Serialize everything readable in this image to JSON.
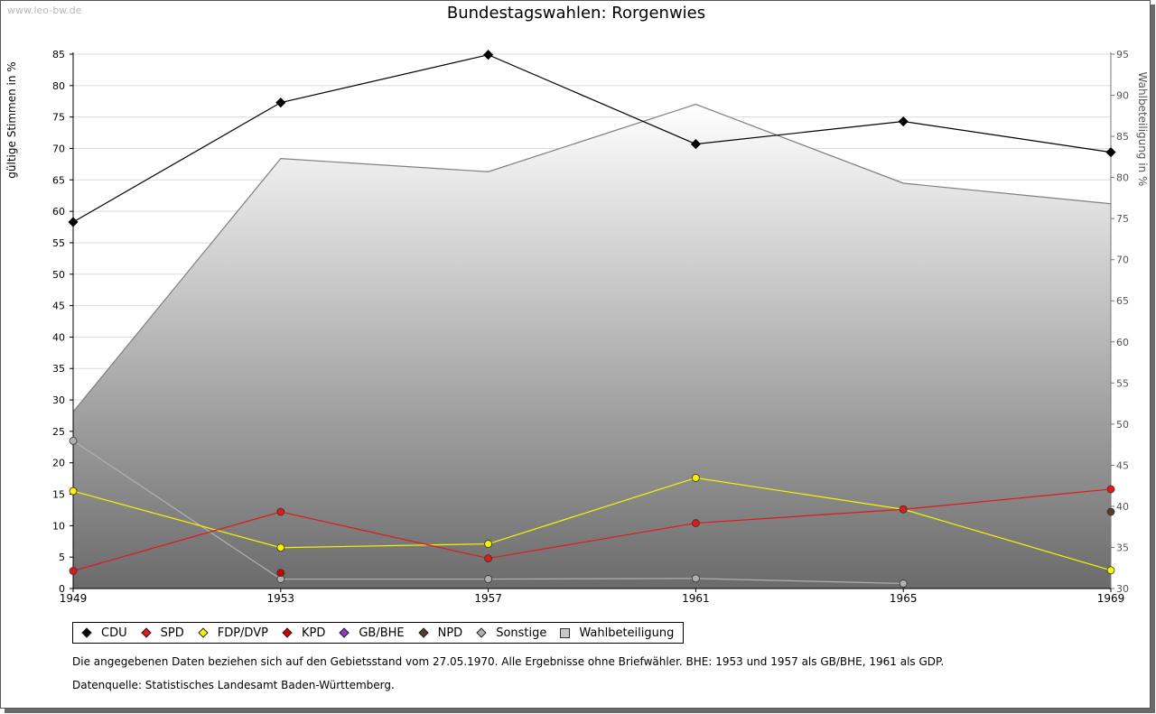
{
  "watermark": "www.leo-bw.de",
  "chart_data": {
    "type": "line",
    "title": "Bundestagswahlen: Rorgenwies",
    "ylabel": "gültige Stimmen in %",
    "y2label": "Wahlbeteiligung in %",
    "x": [
      1949,
      1953,
      1957,
      1961,
      1965,
      1969
    ],
    "ylim": [
      0,
      85
    ],
    "y2lim": [
      30,
      95
    ],
    "yticks": [
      0,
      5,
      10,
      15,
      20,
      25,
      30,
      35,
      40,
      45,
      50,
      55,
      60,
      65,
      70,
      75,
      80,
      85
    ],
    "y2ticks": [
      30,
      35,
      40,
      45,
      50,
      55,
      60,
      65,
      70,
      75,
      80,
      85,
      90,
      95
    ],
    "grid": true,
    "legend_position": "bottom",
    "area": {
      "name": "Wahlbeteiligung",
      "values": [
        51.5,
        82.3,
        80.7,
        88.9,
        79.3,
        76.8
      ],
      "color": "#808080"
    },
    "series": [
      {
        "name": "CDU",
        "color": "#000000",
        "values": [
          58.3,
          77.3,
          84.9,
          70.7,
          74.3,
          69.4
        ]
      },
      {
        "name": "SPD",
        "color": "#e0191a",
        "values": [
          2.8,
          12.2,
          4.8,
          10.4,
          12.6,
          15.8
        ]
      },
      {
        "name": "FDP/DVP",
        "color": "#f5f500",
        "values": [
          15.5,
          6.5,
          7.1,
          17.6,
          12.6,
          2.9
        ]
      },
      {
        "name": "KPD",
        "color": "#cc0000",
        "values": [
          null,
          2.5,
          null,
          null,
          null,
          null
        ]
      },
      {
        "name": "GB/BHE",
        "color": "#9933cc",
        "values": [
          null,
          null,
          null,
          null,
          null,
          null
        ]
      },
      {
        "name": "NPD",
        "color": "#5a3a2a",
        "values": [
          null,
          null,
          null,
          null,
          null,
          12.2
        ]
      },
      {
        "name": "Sonstige",
        "color": "#b0b0b0",
        "values": [
          23.5,
          1.5,
          1.5,
          1.6,
          0.8,
          null
        ]
      }
    ]
  },
  "legend": [
    {
      "label": "CDU",
      "color": "#000000",
      "shape": "diamond"
    },
    {
      "label": "SPD",
      "color": "#e0191a",
      "shape": "diamond"
    },
    {
      "label": "FDP/DVP",
      "color": "#f5f500",
      "shape": "diamond"
    },
    {
      "label": "KPD",
      "color": "#cc0000",
      "shape": "diamond"
    },
    {
      "label": "GB/BHE",
      "color": "#9933cc",
      "shape": "diamond"
    },
    {
      "label": "NPD",
      "color": "#5a3a2a",
      "shape": "diamond"
    },
    {
      "label": "Sonstige",
      "color": "#b0b0b0",
      "shape": "diamond"
    },
    {
      "label": "Wahlbeteiligung",
      "color": "#c8c8c8",
      "shape": "square"
    }
  ],
  "notes": {
    "line1": "Die angegebenen Daten beziehen sich auf den Gebietsstand vom 27.05.1970. Alle Ergebnisse ohne Briefwähler. BHE: 1953 und 1957 als GB/BHE, 1961 als GDP.",
    "line2": "Datenquelle: Statistisches Landesamt Baden-Württemberg."
  }
}
